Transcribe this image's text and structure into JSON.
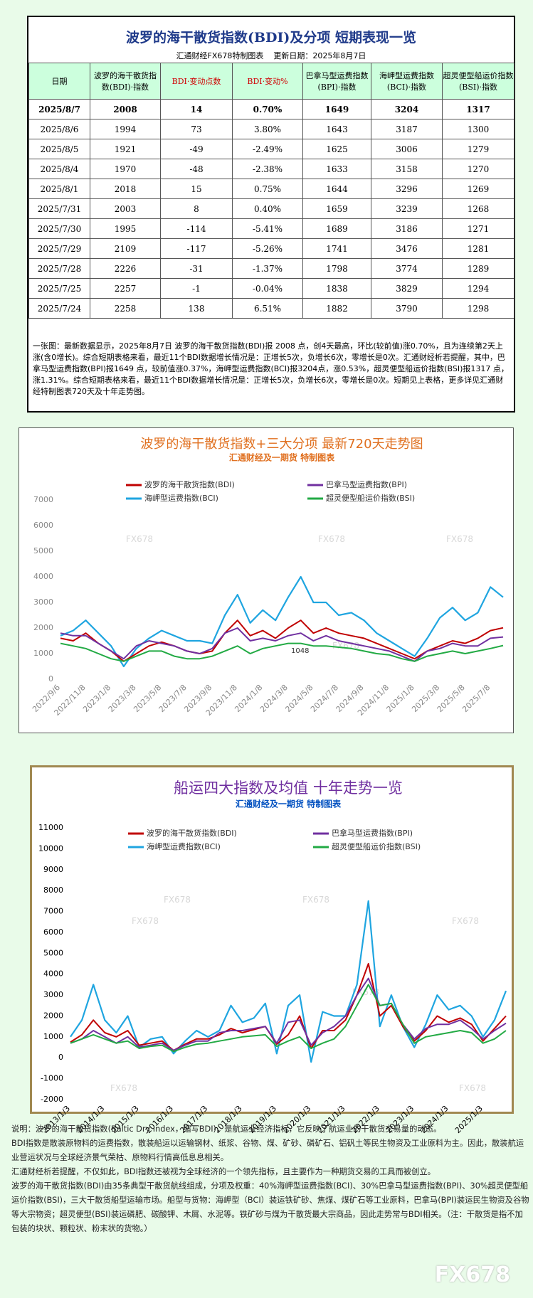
{
  "header": {
    "title": "波罗的海干散货指数(BDI)及分项  短期表现一览",
    "source": "汇通财经FX678特制图表",
    "updated": "更新日期：2025年8月7日"
  },
  "table": {
    "columns": [
      "日期",
      "波罗的海干散货指数(BDI)·指数",
      "BDI·变动点数",
      "BDI·变动%",
      "巴拿马型运费指数(BPI)·指数",
      "海岬型运费指数(BCI)·指数",
      "超灵便型船运价指数(BSI)·指数"
    ],
    "rows": [
      [
        "2025/8/7",
        "2008",
        "14",
        "0.70%",
        "1649",
        "3204",
        "1317"
      ],
      [
        "2025/8/6",
        "1994",
        "73",
        "3.80%",
        "1643",
        "3187",
        "1300"
      ],
      [
        "2025/8/5",
        "1921",
        "-49",
        "-2.49%",
        "1625",
        "3006",
        "1279"
      ],
      [
        "2025/8/4",
        "1970",
        "-48",
        "-2.38%",
        "1633",
        "3158",
        "1270"
      ],
      [
        "2025/8/1",
        "2018",
        "15",
        "0.75%",
        "1644",
        "3296",
        "1269"
      ],
      [
        "2025/7/31",
        "2003",
        "8",
        "0.40%",
        "1659",
        "3239",
        "1268"
      ],
      [
        "2025/7/30",
        "1995",
        "-114",
        "-5.41%",
        "1689",
        "3186",
        "1271"
      ],
      [
        "2025/7/29",
        "2109",
        "-117",
        "-5.26%",
        "1741",
        "3476",
        "1281"
      ],
      [
        "2025/7/28",
        "2226",
        "-31",
        "-1.37%",
        "1798",
        "3774",
        "1289"
      ],
      [
        "2025/7/25",
        "2257",
        "-1",
        "-0.04%",
        "1838",
        "3829",
        "1294"
      ],
      [
        "2025/7/24",
        "2258",
        "138",
        "6.51%",
        "1882",
        "3790",
        "1298"
      ]
    ]
  },
  "summary": "一张图：最新数据显示，2025年8月7日 波罗的海干散货指数(BDI)报 2008 点，创4天最高，环比(较前值)涨0.70%，且为连续第2天上涨(含0增长)。综合短期表格来看，最近11个BDI数据增长情况是：正增长5次，负增长6次，零增长是0次。汇通财经析若提醒，其中，巴拿马型运费指数(BPI)报1649 点，较前值涨0.37%，海岬型运费指数(BCI)报3204点，涨0.53%，超灵便型船运价指数(BSI)报1317 点，涨1.31%。综合短期表格来看，最近11个BDI数据增长情况是：正增长5次，负增长6次，零增长是0次。短期见上表格，更多详见汇通财经特制图表720天及十年走势图。",
  "chart_data": [
    {
      "type": "line",
      "title": "波罗的海干散货指数+三大分项  最新720天走势图",
      "subtitle": "汇通财经及一期货  特制图表",
      "watermark": "FX678",
      "annotation": "1048",
      "categories": [
        "2022/9/6",
        null,
        "2022/11/8",
        null,
        "2023/1/8",
        null,
        "2023/3/8",
        null,
        "2023/5/8",
        null,
        "2023/7/8",
        null,
        "2023/9/8",
        null,
        "2023/11/8",
        null,
        "2024/1/8",
        null,
        "2024/3/8",
        null,
        "2024/5/8",
        null,
        "2024/7/8",
        null,
        "2024/9/8",
        null,
        "2024/11/8",
        null,
        "2025/1/8",
        null,
        "2025/3/8",
        null,
        "2025/5/8",
        null,
        "2025/7/8",
        null
      ],
      "series": [
        {
          "name": "波罗的海干散货指数(BDI)",
          "color": "#c00000",
          "values": [
            1600,
            1500,
            1800,
            1400,
            1100,
            700,
            1000,
            1300,
            1450,
            1300,
            1100,
            1000,
            1100,
            1800,
            2300,
            1700,
            1900,
            1600,
            2000,
            2300,
            1800,
            2000,
            1800,
            1700,
            1600,
            1400,
            1200,
            1000,
            800,
            1100,
            1300,
            1500,
            1400,
            1600,
            1900,
            2008
          ]
        },
        {
          "name": "巴拿马型运费指数(BPI)",
          "color": "#7030a0",
          "values": [
            1800,
            1700,
            1700,
            1400,
            1100,
            800,
            1300,
            1500,
            1400,
            1300,
            1100,
            1000,
            1200,
            1800,
            2000,
            1500,
            1600,
            1500,
            1700,
            1800,
            1500,
            1700,
            1500,
            1400,
            1300,
            1200,
            1100,
            900,
            700,
            1100,
            1200,
            1400,
            1300,
            1300,
            1600,
            1649
          ]
        },
        {
          "name": "海岬型运费指数(BCI)",
          "color": "#1fa5e0",
          "values": [
            1700,
            1900,
            2300,
            1800,
            1300,
            500,
            1200,
            1600,
            1900,
            1700,
            1500,
            1500,
            1400,
            2500,
            3300,
            2200,
            2700,
            2300,
            3200,
            4000,
            3000,
            3000,
            2500,
            2600,
            2300,
            1800,
            1500,
            1200,
            900,
            1600,
            2400,
            2800,
            2300,
            2600,
            3600,
            3204
          ]
        },
        {
          "name": "超灵便型船运价指数(BSI)",
          "color": "#22aa44",
          "values": [
            1400,
            1300,
            1200,
            1000,
            800,
            700,
            900,
            1100,
            1100,
            900,
            800,
            800,
            900,
            1100,
            1300,
            1000,
            1200,
            1300,
            1400,
            1400,
            1300,
            1300,
            1250,
            1200,
            1100,
            1000,
            950,
            800,
            700,
            900,
            1000,
            1100,
            1000,
            1100,
            1200,
            1317
          ]
        }
      ],
      "ylim": [
        0,
        7000
      ],
      "yticks": [
        0,
        1000,
        2000,
        3000,
        4000,
        5000,
        6000,
        7000
      ],
      "grid": false,
      "legend": "top"
    },
    {
      "type": "line",
      "title": "船运四大指数及均值 十年走势一览",
      "subtitle": "汇通财经及一期货 特制图表",
      "watermark": "FX678",
      "categories": [
        "2013/1/3",
        null,
        null,
        "2014/1/3",
        null,
        null,
        "2015/1/3",
        null,
        null,
        "2016/1/3",
        null,
        null,
        "2017/1/3",
        null,
        null,
        "2018/1/3",
        null,
        null,
        "2019/1/3",
        null,
        null,
        "2020/1/3",
        null,
        null,
        "2021/1/3",
        null,
        null,
        "2022/1/3",
        null,
        null,
        "2023/1/3",
        null,
        null,
        "2024/1/3",
        null,
        null,
        "2025/1/3",
        null,
        null
      ],
      "series": [
        {
          "name": "波罗的海干散货指数(BDI)",
          "color": "#c00000",
          "values": [
            750,
            1100,
            1800,
            1200,
            1000,
            1300,
            600,
            700,
            800,
            350,
            650,
            900,
            900,
            1100,
            1400,
            1200,
            1350,
            1500,
            650,
            1100,
            2000,
            450,
            1300,
            1300,
            1800,
            3000,
            4500,
            2000,
            2500,
            1500,
            800,
            1300,
            2000,
            1700,
            1900,
            1600,
            800,
            1400,
            2000
          ]
        },
        {
          "name": "巴拿马型运费指数(BPI)",
          "color": "#7030a0",
          "values": [
            700,
            900,
            1300,
            1000,
            700,
            1000,
            500,
            600,
            700,
            350,
            600,
            800,
            800,
            1200,
            1300,
            1300,
            1400,
            1500,
            700,
            1700,
            1800,
            600,
            1200,
            1500,
            2000,
            3000,
            3800,
            2500,
            2600,
            1600,
            900,
            1400,
            1600,
            1600,
            1800,
            1400,
            900,
            1300,
            1650
          ]
        },
        {
          "name": "海岬型运费指数(BCI)",
          "color": "#1fa5e0",
          "values": [
            1000,
            1800,
            3500,
            1800,
            1200,
            2000,
            500,
            900,
            1000,
            200,
            800,
            1300,
            1000,
            1300,
            2500,
            1700,
            1900,
            2600,
            200,
            2500,
            3000,
            -200,
            2200,
            2000,
            2000,
            3500,
            7500,
            1500,
            3000,
            1500,
            500,
            1600,
            3000,
            2300,
            2500,
            2000,
            1000,
            1800,
            3200
          ]
        },
        {
          "name": "超灵便型船运价指数(BSI)",
          "color": "#22aa44",
          "values": [
            700,
            900,
            1100,
            900,
            700,
            800,
            450,
            550,
            600,
            300,
            500,
            650,
            700,
            800,
            900,
            1000,
            1050,
            1100,
            550,
            800,
            1000,
            450,
            700,
            900,
            1500,
            2500,
            3500,
            2500,
            2600,
            1600,
            700,
            1000,
            1100,
            1200,
            1300,
            1200,
            700,
            900,
            1300
          ]
        }
      ],
      "ylim": [
        -2000,
        11000
      ],
      "yticks": [
        -2000,
        -1000,
        0,
        1000,
        2000,
        3000,
        4000,
        5000,
        6000,
        7000,
        8000,
        9000,
        10000,
        11000
      ],
      "grid": false,
      "legend": "top"
    }
  ],
  "notes": [
    "说明：波罗的海干散货指数(Baltic Dry Index，缩写BDI)，是航运业经济指标，它反映了航运业的干散货交易量的动态。",
    "BDI指数是散装原物料的运费指数，散装船运以运输钢材、纸浆、谷物、煤、矿砂、磷矿石、铝矾土等民生物资及工业原料为主。因此，散装航运业营运状况与全球经济景气荣枯、原物料行情高低息息相关。",
    "汇通财经析若提醒，不仅如此，BDI指数还被视为全球经济的一个领先指标，且主要作为一种期货交易的工具而被创立。",
    "波罗的海干散货指数(BDI)由35条典型干散货航线组成，分项及权重：40%海岬型运费指数(BCI)、30%巴拿马型运费指数(BPI)、30%超灵便型船运价指数(BSI)，三大干散货船型运输市场。船型与货物：海岬型（BCI）装运铁矿砂、焦煤、煤矿石等工业原料，巴拿马(BPI)装运民生物资及谷物等大宗物资；超灵便型(BSI)装运磷肥、碳酸钾、木屑、水泥等。铁矿砂与煤为干散货最大宗商品，因此走势常与BDI相关。（注：干散货是指不加包装的块状、颗粒状、粉末状的货物。）"
  ],
  "brand": "FX678"
}
